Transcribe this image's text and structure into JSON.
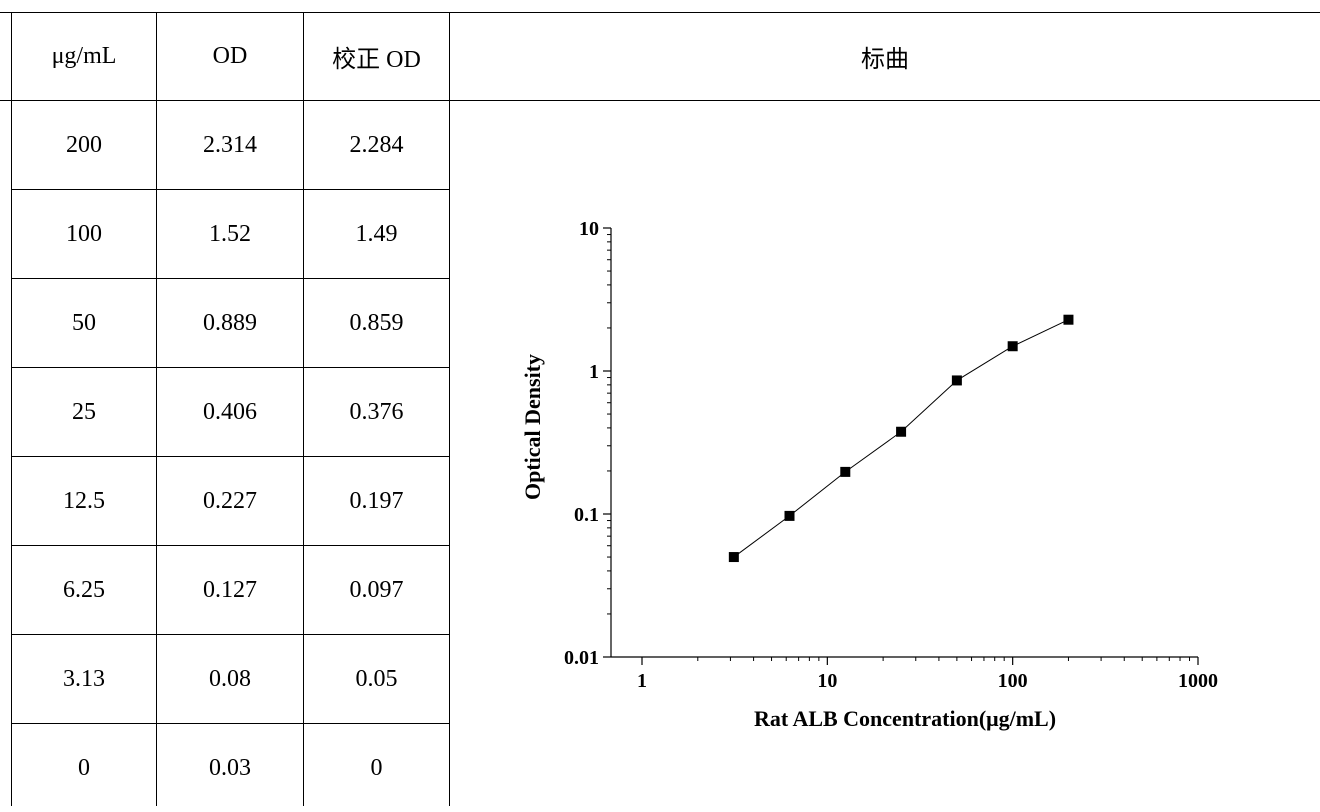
{
  "table": {
    "headers": [
      "μg/mL",
      "OD",
      "校正 OD"
    ],
    "rows": [
      [
        "200",
        "2.314",
        "2.284"
      ],
      [
        "100",
        "1.52",
        "1.49"
      ],
      [
        "50",
        "0.889",
        "0.859"
      ],
      [
        "25",
        "0.406",
        "0.376"
      ],
      [
        "12.5",
        "0.227",
        "0.197"
      ],
      [
        "6.25",
        "0.127",
        "0.097"
      ],
      [
        "3.13",
        "0.08",
        "0.05"
      ],
      [
        "0",
        "0.03",
        "0"
      ]
    ]
  },
  "chart_panel": {
    "header": "标曲"
  },
  "chart_data": {
    "type": "scatter",
    "xlabel": "Rat ALB Concentration(μg/mL)",
    "ylabel": "Optical Density",
    "x_scale": "log",
    "y_scale": "log",
    "xlim": [
      1,
      1000
    ],
    "ylim": [
      0.01,
      10
    ],
    "x_ticks": [
      "1",
      "10",
      "100",
      "1000"
    ],
    "y_ticks": [
      "0.01",
      "0.1",
      "1",
      "10"
    ],
    "grid": false,
    "connected_line": true,
    "marker": "square",
    "series": [
      {
        "x": [
          3.13,
          6.25,
          12.5,
          25,
          50,
          100,
          200
        ],
        "y": [
          0.05,
          0.097,
          0.197,
          0.376,
          0.859,
          1.49,
          2.284
        ]
      }
    ]
  }
}
